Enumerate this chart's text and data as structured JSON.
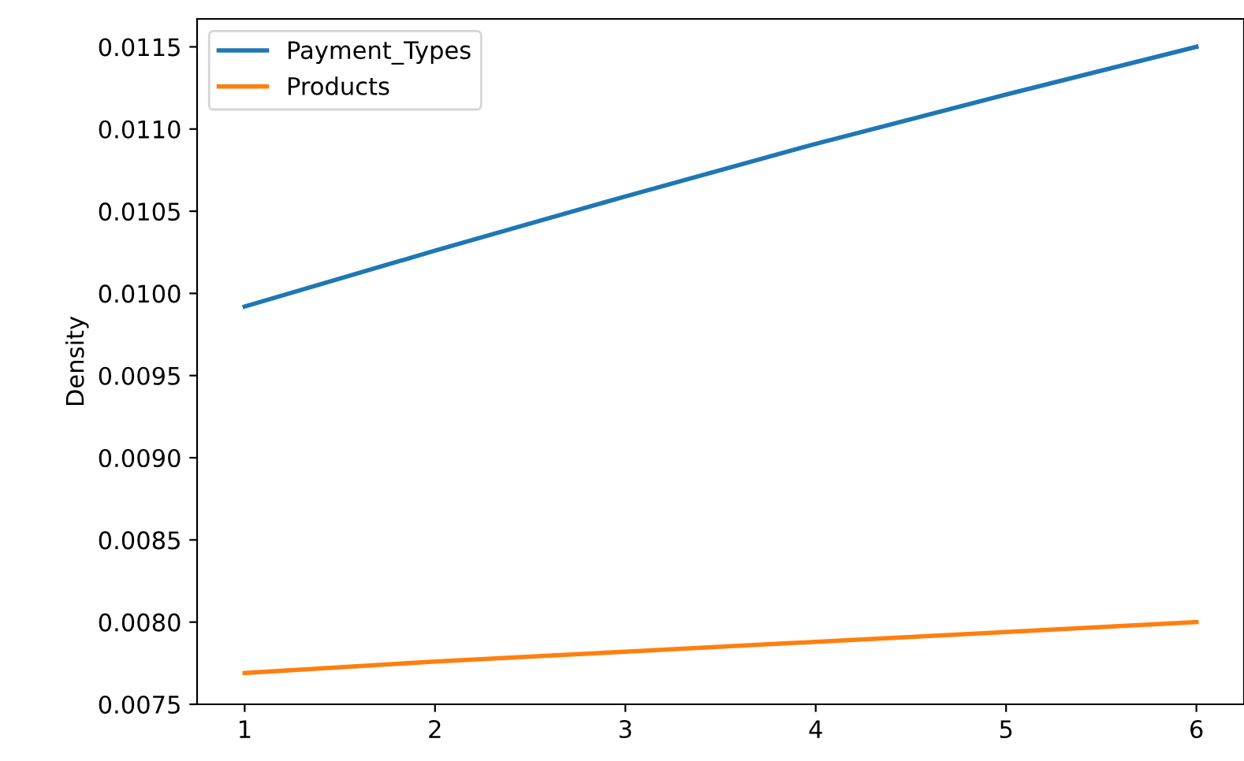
{
  "chart_data": {
    "type": "line",
    "ylabel": "Density",
    "x": [
      1,
      2,
      3,
      4,
      5,
      6
    ],
    "series": [
      {
        "name": "Payment_Types",
        "color": "#1f77b4",
        "values": [
          0.00992,
          0.01026,
          0.01059,
          0.01091,
          0.01121,
          0.0115
        ]
      },
      {
        "name": "Products",
        "color": "#ff7f0e",
        "values": [
          0.00769,
          0.00776,
          0.00782,
          0.00788,
          0.00794,
          0.008
        ]
      }
    ],
    "xlim": [
      0.75,
      6.25
    ],
    "ylim": [
      0.0075,
      0.01167
    ],
    "xticks": [
      1,
      2,
      3,
      4,
      5,
      6
    ],
    "yticks": [
      {
        "value": 0.0075,
        "label": "0.0075"
      },
      {
        "value": 0.008,
        "label": "0.0080"
      },
      {
        "value": 0.0085,
        "label": "0.0085"
      },
      {
        "value": 0.009,
        "label": "0.0090"
      },
      {
        "value": 0.0095,
        "label": "0.0095"
      },
      {
        "value": 0.01,
        "label": "0.0100"
      },
      {
        "value": 0.0105,
        "label": "0.0105"
      },
      {
        "value": 0.011,
        "label": "0.0110"
      },
      {
        "value": 0.0115,
        "label": "0.0115"
      }
    ],
    "legend": "top left",
    "grid": false
  }
}
